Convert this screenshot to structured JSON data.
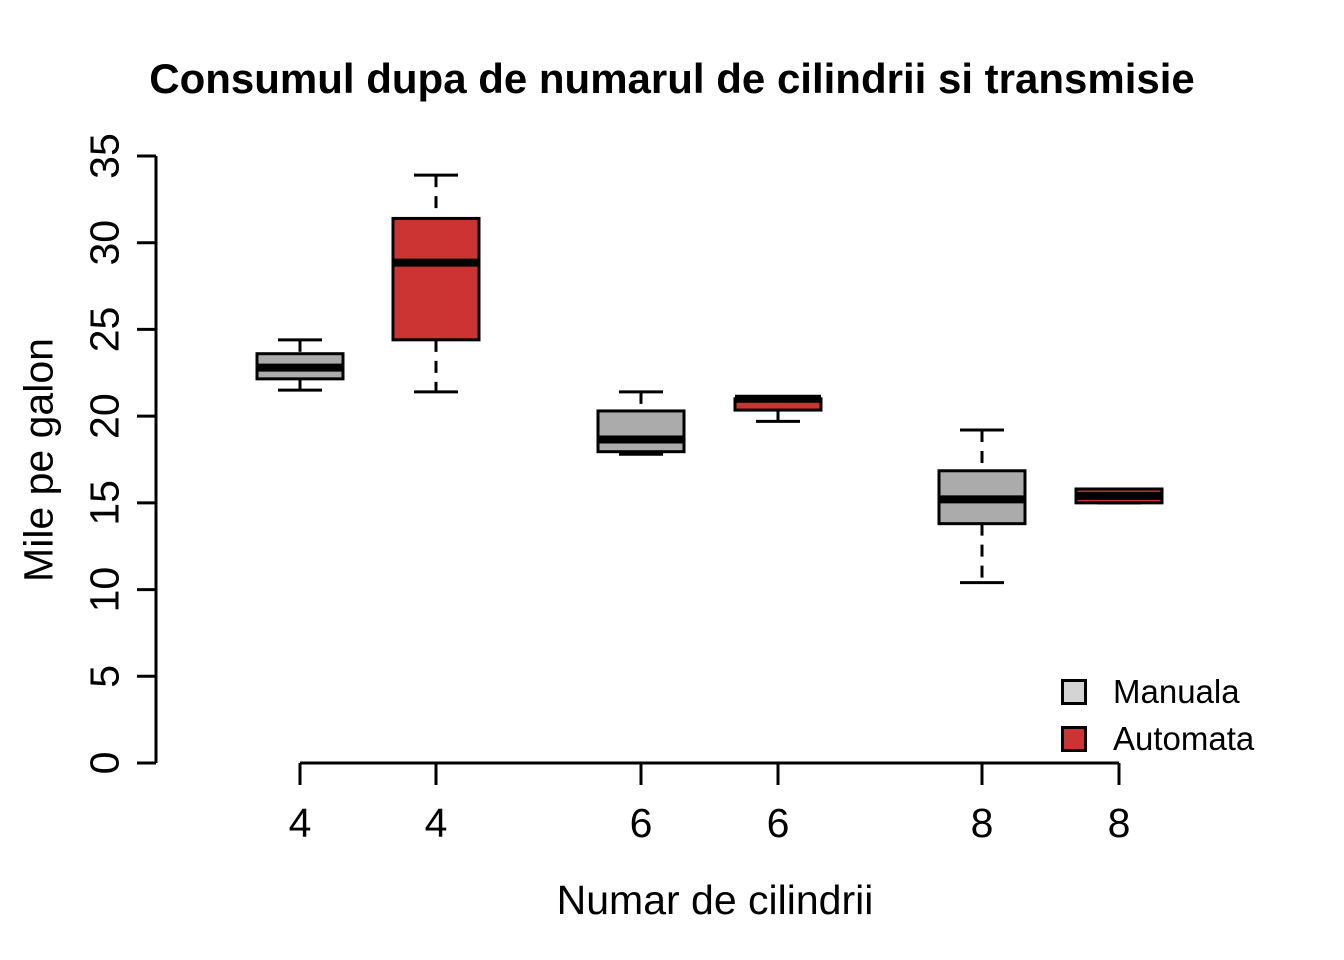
{
  "chart_data": {
    "type": "boxplot",
    "title": "Consumul dupa de numarul de cilindrii si transmisie",
    "xlabel": "Numar de cilindrii",
    "ylabel": "Mile pe galon",
    "ylim": [
      0,
      35
    ],
    "yticks": [
      0,
      5,
      10,
      15,
      20,
      25,
      30,
      35
    ],
    "x_tick_labels": [
      "4",
      "4",
      "6",
      "6",
      "8",
      "8"
    ],
    "grid": "off",
    "legend": {
      "position": "bottom-right",
      "items": [
        {
          "label": "Manuala",
          "fill": "#D4D4D4"
        },
        {
          "label": "Automata",
          "fill": "#CC3333"
        }
      ]
    },
    "boxes": [
      {
        "cylinders": "4",
        "series": "Manuala",
        "color": "#ABABAB",
        "whisker_low": 21.5,
        "q1": 22.15,
        "median": 22.8,
        "q3": 23.6,
        "whisker_high": 24.4
      },
      {
        "cylinders": "4",
        "series": "Automata",
        "color": "#CC3333",
        "whisker_low": 21.4,
        "q1": 24.4,
        "median": 28.85,
        "q3": 31.4,
        "whisker_high": 33.9
      },
      {
        "cylinders": "6",
        "series": "Manuala",
        "color": "#ABABAB",
        "whisker_low": 17.8,
        "q1": 17.95,
        "median": 18.65,
        "q3": 20.3,
        "whisker_high": 21.4
      },
      {
        "cylinders": "6",
        "series": "Automata",
        "color": "#CC3333",
        "whisker_low": 19.7,
        "q1": 20.35,
        "median": 21.0,
        "q3": 21.0,
        "whisker_high": 21.0
      },
      {
        "cylinders": "8",
        "series": "Manuala",
        "color": "#ABABAB",
        "whisker_low": 10.4,
        "q1": 13.8,
        "median": 15.2,
        "q3": 16.85,
        "whisker_high": 19.2
      },
      {
        "cylinders": "8",
        "series": "Automata",
        "color": "#CC3333",
        "whisker_low": 15.0,
        "q1": 15.0,
        "median": 15.4,
        "q3": 15.8,
        "whisker_high": 15.8
      }
    ]
  }
}
